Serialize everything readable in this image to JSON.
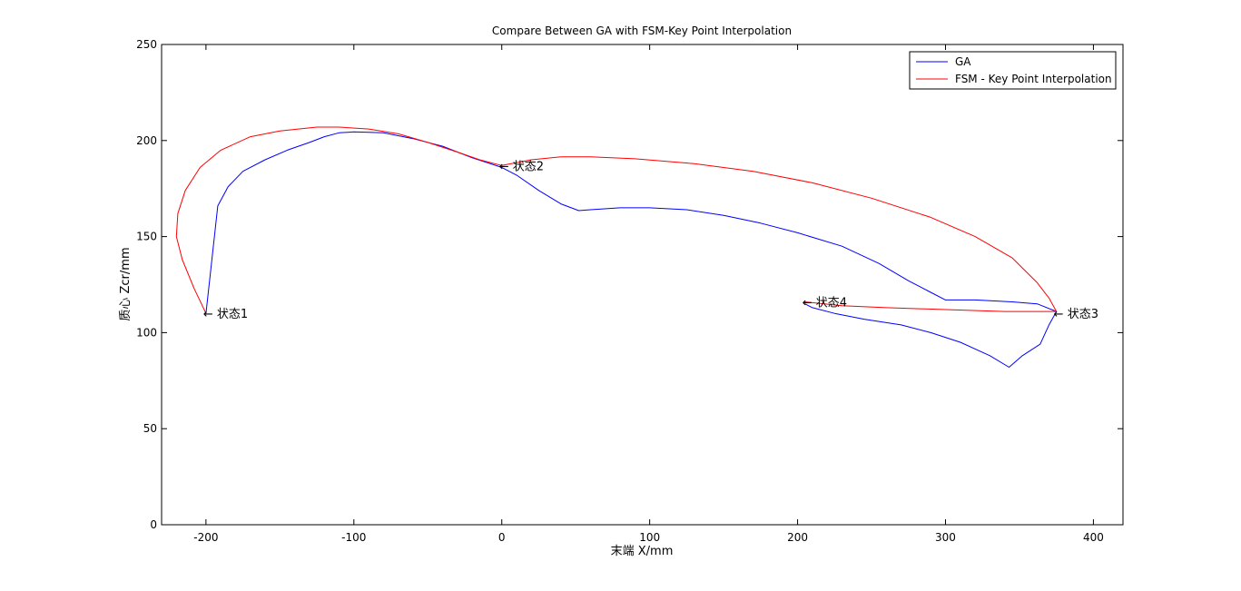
{
  "chart_data": {
    "type": "line",
    "title": "Compare Between GA with FSM-Key Point Interpolation",
    "xlabel": "末端 X/mm",
    "ylabel": "质心 Zcr/mm",
    "xlim": [
      -230,
      420
    ],
    "ylim": [
      0,
      250
    ],
    "xticks": [
      -200,
      -100,
      0,
      100,
      200,
      300,
      400
    ],
    "yticks": [
      0,
      50,
      100,
      150,
      200,
      250
    ],
    "grid": false,
    "legend_position": "top-right",
    "series": [
      {
        "name": "GA",
        "color": "#0000ff",
        "points": [
          [
            -200,
            110
          ],
          [
            -192,
            166
          ],
          [
            -185,
            176
          ],
          [
            -175,
            184
          ],
          [
            -160,
            190
          ],
          [
            -145,
            195
          ],
          [
            -130,
            199
          ],
          [
            -120,
            202
          ],
          [
            -110,
            204
          ],
          [
            -100,
            204.5
          ],
          [
            -80,
            204
          ],
          [
            -60,
            201
          ],
          [
            -40,
            197
          ],
          [
            -20,
            191
          ],
          [
            0,
            186
          ],
          [
            10,
            182
          ],
          [
            25,
            174
          ],
          [
            40,
            167
          ],
          [
            52,
            163.5
          ],
          [
            60,
            164
          ],
          [
            80,
            165
          ],
          [
            100,
            165
          ],
          [
            125,
            164
          ],
          [
            150,
            161
          ],
          [
            175,
            157
          ],
          [
            200,
            152
          ],
          [
            230,
            145
          ],
          [
            255,
            136
          ],
          [
            275,
            127
          ],
          [
            290,
            121
          ],
          [
            300,
            117
          ],
          [
            320,
            117
          ],
          [
            345,
            116
          ],
          [
            362,
            115
          ],
          [
            375,
            111
          ],
          [
            370,
            104
          ],
          [
            364,
            94
          ],
          [
            352,
            88
          ],
          [
            343,
            82
          ],
          [
            330,
            88
          ],
          [
            310,
            95
          ],
          [
            290,
            100
          ],
          [
            270,
            104
          ],
          [
            245,
            107
          ],
          [
            225,
            110
          ],
          [
            210,
            113
          ],
          [
            205,
            115
          ]
        ]
      },
      {
        "name": "FSM - Key Point Interpolation",
        "color": "#ff0000",
        "points": [
          [
            -200,
            110
          ],
          [
            -208,
            123
          ],
          [
            -216,
            138
          ],
          [
            -220,
            150
          ],
          [
            -219,
            162
          ],
          [
            -214,
            174
          ],
          [
            -204,
            186
          ],
          [
            -190,
            195
          ],
          [
            -170,
            202
          ],
          [
            -150,
            205
          ],
          [
            -125,
            207
          ],
          [
            -110,
            207
          ],
          [
            -90,
            206
          ],
          [
            -70,
            203.5
          ],
          [
            -50,
            199
          ],
          [
            -30,
            194
          ],
          [
            -15,
            190
          ],
          [
            0,
            187
          ],
          [
            20,
            190
          ],
          [
            40,
            191.5
          ],
          [
            60,
            191.5
          ],
          [
            90,
            190.5
          ],
          [
            130,
            188
          ],
          [
            170,
            184
          ],
          [
            210,
            178
          ],
          [
            250,
            170
          ],
          [
            290,
            160
          ],
          [
            320,
            150
          ],
          [
            345,
            139
          ],
          [
            362,
            126
          ],
          [
            370,
            118
          ],
          [
            375,
            111
          ],
          [
            340,
            111
          ],
          [
            300,
            112
          ],
          [
            260,
            113
          ],
          [
            230,
            114
          ],
          [
            205,
            116
          ]
        ]
      }
    ],
    "annotations": [
      {
        "text": "←  状态1",
        "x": -200,
        "y": 110
      },
      {
        "text": "←  状态2",
        "x": 0,
        "y": 187
      },
      {
        "text": "←  状态3",
        "x": 375,
        "y": 110
      },
      {
        "text": "←  状态4",
        "x": 205,
        "y": 116
      }
    ]
  }
}
